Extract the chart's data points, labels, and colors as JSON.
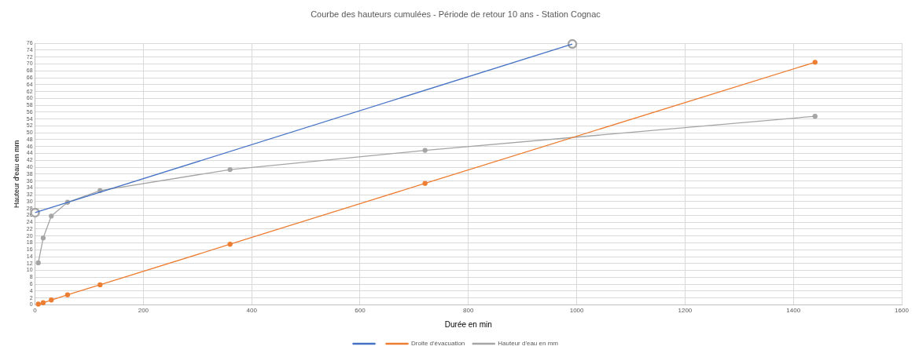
{
  "chart_data": {
    "type": "line",
    "title": "Courbe des hauteurs cumulées - Période de retour 10 ans - Station Cognac",
    "xlabel": "Durée en min",
    "ylabel": "Hauteur d'eau en mm",
    "xlim": [
      0,
      1600
    ],
    "xticks": [
      0,
      200,
      400,
      600,
      800,
      1000,
      1200,
      1400,
      1600
    ],
    "ylim": [
      0,
      76
    ],
    "yticks": [
      0,
      2,
      4,
      6,
      8,
      10,
      12,
      14,
      16,
      18,
      20,
      22,
      24,
      26,
      28,
      30,
      32,
      34,
      36,
      38,
      40,
      42,
      44,
      46,
      48,
      50,
      52,
      54,
      56,
      58,
      60,
      62,
      64,
      66,
      68,
      70,
      72,
      74,
      76
    ],
    "grid": true,
    "legend": "bottom",
    "series": [
      {
        "color": "#4472c4",
        "marker": "none",
        "x": [
          0,
          992
        ],
        "values": [
          26.8,
          75.8
        ]
      },
      {
        "name": "Droite d'évacuation",
        "color": "#ed7d31",
        "marker": "circle",
        "x": [
          6,
          15,
          30,
          60,
          120,
          360,
          720,
          1440
        ],
        "values": [
          0.2,
          0.6,
          1.4,
          2.9,
          5.8,
          17.6,
          35.3,
          70.5
        ]
      },
      {
        "name": "Hauteur d'eau en mm",
        "color": "#a5a5a5",
        "marker": "circle",
        "x": [
          6,
          15,
          30,
          60,
          120,
          360,
          720,
          1440
        ],
        "values": [
          12.2,
          19.4,
          25.8,
          29.8,
          33.2,
          39.3,
          44.9,
          54.8
        ]
      },
      {
        "type": "scatter",
        "color": "#a5a5a5",
        "marker": "circle",
        "x": [
          0,
          992
        ],
        "values": [
          26.8,
          75.8
        ]
      }
    ]
  }
}
